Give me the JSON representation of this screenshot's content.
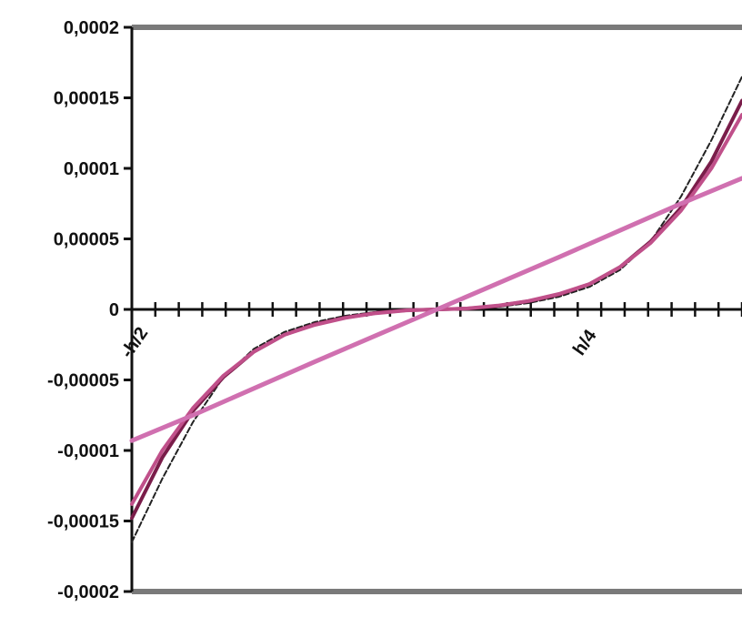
{
  "chart_data": {
    "type": "line",
    "ylim": [
      -0.0002,
      0.0002
    ],
    "y_ticks": [
      {
        "value": 0.0002,
        "label": "0,0002"
      },
      {
        "value": 0.00015,
        "label": "0,00015"
      },
      {
        "value": 0.0001,
        "label": "0,0001"
      },
      {
        "value": 5e-05,
        "label": "0,00005"
      },
      {
        "value": 0,
        "label": "0"
      },
      {
        "value": -5e-05,
        "label": "-0,00005"
      },
      {
        "value": -0.0001,
        "label": "-0,0001"
      },
      {
        "value": -0.00015,
        "label": "-0,00015"
      },
      {
        "value": -0.0002,
        "label": "-0,0002"
      }
    ],
    "x_range": [
      -0.5,
      0.5
    ],
    "x_minor_tick_count": 26,
    "x_labels": [
      {
        "x": -0.5,
        "label": "-h/2"
      },
      {
        "x": 0.25,
        "label": "h/4"
      }
    ],
    "grid": false,
    "legend": "none",
    "series": [
      {
        "color": "#222222",
        "style": "dashed",
        "width": 2,
        "points": [
          [
            -0.5,
            -0.000165
          ],
          [
            -0.45,
            -0.00012
          ],
          [
            -0.4,
            -8e-05
          ],
          [
            -0.35,
            -4.8e-05
          ],
          [
            -0.3,
            -2.8e-05
          ],
          [
            -0.25,
            -1.6e-05
          ],
          [
            -0.2,
            -9e-06
          ],
          [
            -0.15,
            -4.5e-06
          ],
          [
            -0.1,
            -1.8e-06
          ],
          [
            -0.05,
            -3e-07
          ],
          [
            0,
            0
          ],
          [
            0.05,
            3e-07
          ],
          [
            0.1,
            1.8e-06
          ],
          [
            0.15,
            4.5e-06
          ],
          [
            0.2,
            9e-06
          ],
          [
            0.25,
            1.6e-05
          ],
          [
            0.3,
            2.8e-05
          ],
          [
            0.35,
            4.8e-05
          ],
          [
            0.4,
            8e-05
          ],
          [
            0.45,
            0.00012
          ],
          [
            0.5,
            0.000165
          ]
        ]
      },
      {
        "color": "#7a1d4a",
        "style": "solid",
        "width": 4,
        "points": [
          [
            -0.5,
            -0.000148
          ],
          [
            -0.45,
            -0.000105
          ],
          [
            -0.4,
            -7.2e-05
          ],
          [
            -0.35,
            -4.8e-05
          ],
          [
            -0.3,
            -3e-05
          ],
          [
            -0.25,
            -1.8e-05
          ],
          [
            -0.2,
            -1.05e-05
          ],
          [
            -0.15,
            -5.8e-06
          ],
          [
            -0.1,
            -2.5e-06
          ],
          [
            -0.05,
            -6e-07
          ],
          [
            0,
            0
          ],
          [
            0.05,
            6e-07
          ],
          [
            0.1,
            2.5e-06
          ],
          [
            0.15,
            5.8e-06
          ],
          [
            0.2,
            1.05e-05
          ],
          [
            0.25,
            1.8e-05
          ],
          [
            0.3,
            3e-05
          ],
          [
            0.35,
            4.8e-05
          ],
          [
            0.4,
            7.2e-05
          ],
          [
            0.45,
            0.000105
          ],
          [
            0.5,
            0.000148
          ]
        ]
      },
      {
        "color": "#c0508a",
        "style": "solid",
        "width": 4,
        "points": [
          [
            -0.5,
            -0.000138
          ],
          [
            -0.45,
            -0.0001
          ],
          [
            -0.4,
            -7e-05
          ],
          [
            -0.35,
            -4.7e-05
          ],
          [
            -0.3,
            -3e-05
          ],
          [
            -0.25,
            -1.8e-05
          ],
          [
            -0.2,
            -1.1e-05
          ],
          [
            -0.15,
            -6e-06
          ],
          [
            -0.1,
            -2.7e-06
          ],
          [
            -0.05,
            -7e-07
          ],
          [
            0,
            0
          ],
          [
            0.05,
            7e-07
          ],
          [
            0.1,
            2.7e-06
          ],
          [
            0.15,
            6e-06
          ],
          [
            0.2,
            1.1e-05
          ],
          [
            0.25,
            1.8e-05
          ],
          [
            0.3,
            3e-05
          ],
          [
            0.35,
            4.7e-05
          ],
          [
            0.4,
            7e-05
          ],
          [
            0.45,
            0.0001
          ],
          [
            0.5,
            0.000138
          ]
        ]
      },
      {
        "color": "#d070b0",
        "style": "solid",
        "width": 5,
        "points": [
          [
            -0.5,
            -9.3e-05
          ],
          [
            -0.4,
            -7.5e-05
          ],
          [
            -0.3,
            -5.6e-05
          ],
          [
            -0.2,
            -3.7e-05
          ],
          [
            -0.1,
            -1.85e-05
          ],
          [
            0,
            0
          ],
          [
            0.1,
            1.85e-05
          ],
          [
            0.2,
            3.7e-05
          ],
          [
            0.3,
            5.6e-05
          ],
          [
            0.4,
            7.5e-05
          ],
          [
            0.5,
            9.3e-05
          ]
        ]
      }
    ]
  }
}
